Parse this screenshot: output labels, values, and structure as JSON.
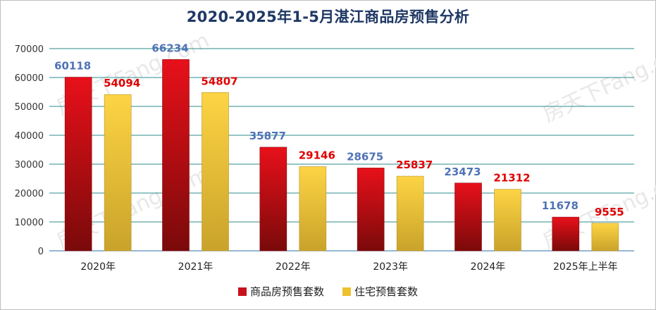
{
  "chart_data": {
    "type": "bar",
    "title": "2020-2025年1-5月湛江商品房预售分析",
    "categories": [
      "2020年",
      "2021年",
      "2022年",
      "2023年",
      "2024年",
      "2025年上半年"
    ],
    "series": [
      {
        "name": "商品房预售套数",
        "values": [
          60118,
          66234,
          35877,
          28675,
          23473,
          11678
        ],
        "color": "#d9141a",
        "label_color": "#4f73b6"
      },
      {
        "name": "住宅预售套数",
        "values": [
          54094,
          54807,
          29146,
          25837,
          21312,
          9555
        ],
        "color": "#f2c12e",
        "label_color": "#e00000"
      }
    ],
    "yticks": [
      "0",
      "10000",
      "20000",
      "30000",
      "40000",
      "50000",
      "60000",
      "70000"
    ],
    "ylim": [
      0,
      70000
    ],
    "grid": true,
    "legend_position": "bottom-center"
  },
  "watermark": "房天下Fang.com"
}
